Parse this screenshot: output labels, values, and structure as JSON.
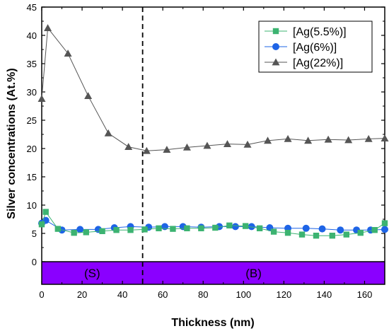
{
  "chart_data": {
    "type": "line",
    "title": "",
    "xlabel": "Thickness (nm)",
    "ylabel": "Silver concentrations (At.%)",
    "xlim": [
      0,
      170
    ],
    "ylim": [
      -4,
      45
    ],
    "xticks": [
      0,
      20,
      40,
      60,
      80,
      100,
      120,
      140,
      160
    ],
    "yticks": [
      0,
      5,
      10,
      15,
      20,
      25,
      30,
      35,
      40,
      45
    ],
    "divider_x": 50,
    "legend_position": "top-right",
    "band": {
      "y_range": [
        -4,
        0
      ],
      "color": "#8a00ff",
      "labels": [
        {
          "text": "(S)",
          "x": 25
        },
        {
          "text": "(B)",
          "x": 105
        }
      ]
    },
    "series": [
      {
        "name": "[Ag(5.5%)]",
        "color": "#3cb371",
        "marker": "square",
        "points": [
          [
            0,
            6.6
          ],
          [
            2,
            8.8
          ],
          [
            8,
            5.8
          ],
          [
            16,
            5.1
          ],
          [
            22,
            5.2
          ],
          [
            30,
            5.4
          ],
          [
            37,
            5.6
          ],
          [
            44,
            5.6
          ],
          [
            51,
            5.7
          ],
          [
            58,
            5.9
          ],
          [
            65,
            5.8
          ],
          [
            72,
            5.9
          ],
          [
            79,
            5.9
          ],
          [
            86,
            6.0
          ],
          [
            93,
            6.4
          ],
          [
            101,
            6.3
          ],
          [
            108,
            5.9
          ],
          [
            115,
            5.3
          ],
          [
            122,
            5.1
          ],
          [
            129,
            4.8
          ],
          [
            136,
            4.6
          ],
          [
            144,
            4.6
          ],
          [
            151,
            4.8
          ],
          [
            158,
            5.1
          ],
          [
            165,
            5.6
          ],
          [
            170,
            6.8
          ]
        ]
      },
      {
        "name": "[Ag(6%)]",
        "color": "#1e64e6",
        "marker": "circle",
        "points": [
          [
            0,
            6.8
          ],
          [
            2,
            7.3
          ],
          [
            10,
            5.6
          ],
          [
            19,
            5.7
          ],
          [
            28,
            5.7
          ],
          [
            36,
            6.0
          ],
          [
            44,
            6.2
          ],
          [
            53,
            6.1
          ],
          [
            61,
            6.2
          ],
          [
            70,
            6.2
          ],
          [
            79,
            6.1
          ],
          [
            88,
            6.2
          ],
          [
            96,
            6.2
          ],
          [
            104,
            6.2
          ],
          [
            113,
            6.0
          ],
          [
            122,
            5.9
          ],
          [
            131,
            5.9
          ],
          [
            139,
            5.8
          ],
          [
            148,
            5.6
          ],
          [
            156,
            5.6
          ],
          [
            163,
            5.6
          ],
          [
            170,
            5.7
          ]
        ]
      },
      {
        "name": "[Ag(22%)]",
        "color": "#555555",
        "marker": "triangle",
        "points": [
          [
            0,
            28.8
          ],
          [
            3,
            41.3
          ],
          [
            13,
            36.8
          ],
          [
            23,
            29.3
          ],
          [
            33,
            22.7
          ],
          [
            43,
            20.3
          ],
          [
            52,
            19.6
          ],
          [
            62,
            19.8
          ],
          [
            72,
            20.2
          ],
          [
            82,
            20.5
          ],
          [
            92,
            20.8
          ],
          [
            102,
            20.7
          ],
          [
            112,
            21.4
          ],
          [
            122,
            21.7
          ],
          [
            132,
            21.4
          ],
          [
            142,
            21.6
          ],
          [
            152,
            21.5
          ],
          [
            162,
            21.7
          ],
          [
            170,
            21.8
          ]
        ]
      }
    ]
  }
}
